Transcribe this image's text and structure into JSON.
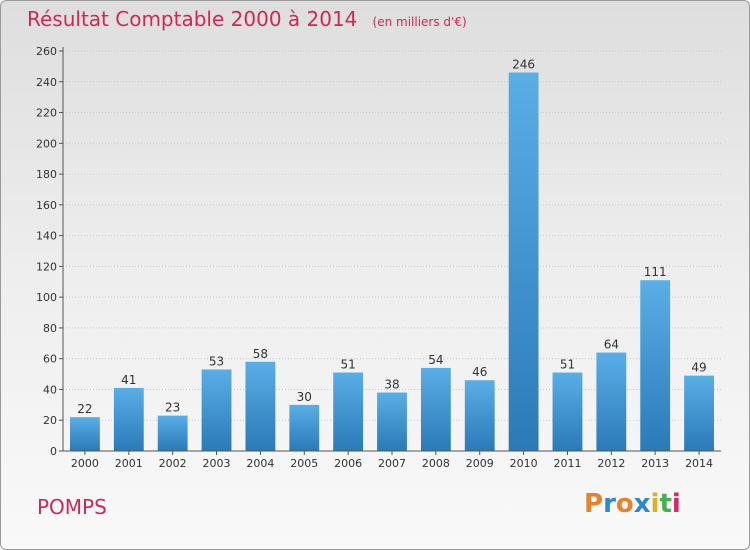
{
  "page": {
    "title": "Résultat Comptable 2000 à 2014",
    "subtitle": "(en milliers d'€)",
    "commune": "POMPS",
    "logo": "Proxiti"
  },
  "colors": {
    "title": "#cc2a55",
    "bar_light": "#5aaee6",
    "bar_dark": "#2a7ab8",
    "grid": "#c8c8c8",
    "logo_letters": [
      "#e8822a",
      "#2a8ad0",
      "#e8822a",
      "#2a8ad0",
      "#e0b020",
      "#45b050",
      "#d02a6a"
    ]
  },
  "chart_data": {
    "type": "bar",
    "title": "Résultat Comptable 2000 à 2014",
    "subtitle": "(en milliers d'€)",
    "xlabel": "",
    "ylabel": "",
    "categories": [
      "2000",
      "2001",
      "2002",
      "2003",
      "2004",
      "2005",
      "2006",
      "2007",
      "2008",
      "2009",
      "2010",
      "2011",
      "2012",
      "2013",
      "2014"
    ],
    "values": [
      22,
      41,
      23,
      53,
      58,
      30,
      51,
      38,
      54,
      46,
      246,
      51,
      64,
      111,
      49
    ],
    "ylim": [
      0,
      260
    ],
    "yticks": [
      0,
      20,
      40,
      60,
      80,
      100,
      120,
      140,
      160,
      180,
      200,
      220,
      240,
      260
    ],
    "grid": true,
    "legend": "none"
  }
}
